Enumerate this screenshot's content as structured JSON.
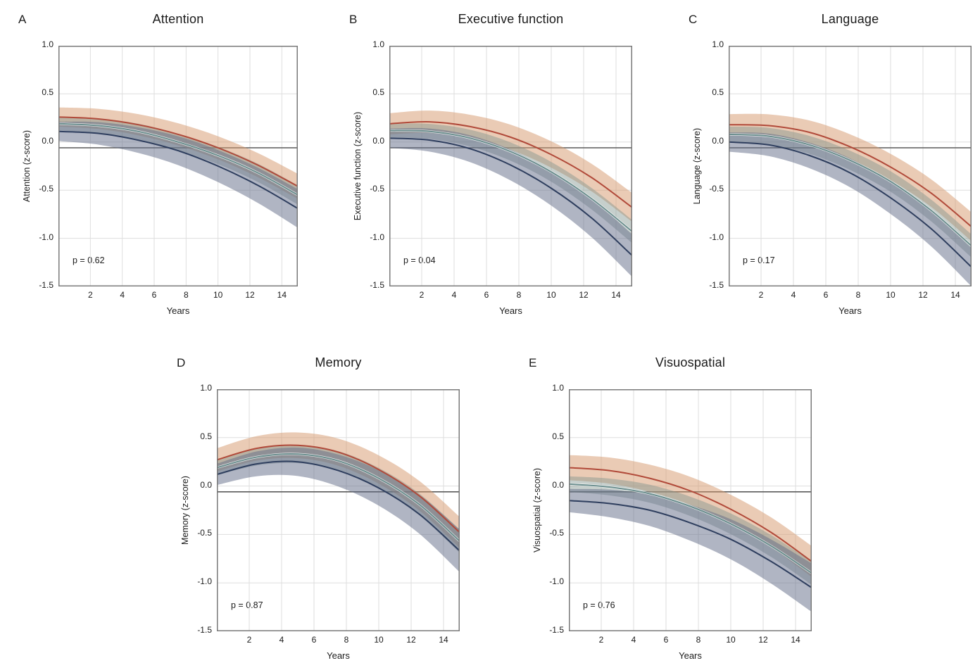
{
  "figure": {
    "background": "#ffffff",
    "colors": {
      "grid": "#dedede",
      "border": "#7a7a7a",
      "reference_line": "#5a5a5a",
      "text": "#1b1b1b",
      "red_line": "#b14a3a",
      "red_band": "rgba(213,151,107,0.5)",
      "teal_line": "#6b8e8e",
      "teal_band": "rgba(128,148,143,0.45)",
      "navy_line": "#2e3e5e",
      "navy_band": "rgba(97,107,136,0.5)"
    }
  },
  "chart_data": [
    {
      "type": "line",
      "panel": "A",
      "title": "Attention",
      "ylabel": "Attention (z-score)",
      "xlabel": "Years",
      "p_label": "p = 0.62",
      "x_ticks": [
        "2",
        "4",
        "6",
        "8",
        "10",
        "12",
        "14"
      ],
      "x_tick_values": [
        2,
        4,
        6,
        8,
        10,
        12,
        14
      ],
      "y_ticks": [
        "1.0",
        "0.5",
        "0.0",
        "-0.5",
        "-1.0",
        "-1.5"
      ],
      "y_tick_values": [
        1.0,
        0.5,
        0.0,
        -0.5,
        -1.0,
        -1.5
      ],
      "xlim": [
        0,
        15
      ],
      "ylim": [
        -1.5,
        1.0
      ],
      "grid": true,
      "legend": "none",
      "reference_line_y": -0.06,
      "x": [
        0,
        2.5,
        5,
        7.5,
        10,
        12.5,
        15
      ],
      "series": [
        {
          "name": "red",
          "line_color": "#b14a3a",
          "band_color": "rgba(213,151,107,0.5)",
          "y": [
            0.26,
            0.24,
            0.18,
            0.08,
            -0.06,
            -0.24,
            -0.46
          ],
          "ci": [
            0.1,
            0.105,
            0.11,
            0.115,
            0.12,
            0.125,
            0.13
          ]
        },
        {
          "name": "teal",
          "line_color": "#6b8e8e",
          "band_color": "rgba(128,148,143,0.45)",
          "y": [
            0.19,
            0.17,
            0.11,
            0.0,
            -0.14,
            -0.32,
            -0.55
          ],
          "ci": [
            0.07,
            0.075,
            0.08,
            0.085,
            0.09,
            0.095,
            0.1
          ]
        },
        {
          "name": "navy",
          "line_color": "#2e3e5e",
          "band_color": "rgba(97,107,136,0.5)",
          "y": [
            0.11,
            0.09,
            0.02,
            -0.09,
            -0.25,
            -0.45,
            -0.69
          ],
          "ci": [
            0.1,
            0.117,
            0.133,
            0.15,
            0.167,
            0.183,
            0.2
          ]
        }
      ]
    },
    {
      "type": "line",
      "panel": "B",
      "title": "Executive function",
      "ylabel": "Executive function (z-score)",
      "xlabel": "Years",
      "p_label": "p = 0.04",
      "x_ticks": [
        "2",
        "4",
        "6",
        "8",
        "10",
        "12",
        "14"
      ],
      "x_tick_values": [
        2,
        4,
        6,
        8,
        10,
        12,
        14
      ],
      "y_ticks": [
        "1.0",
        "0.5",
        "0.0",
        "-0.5",
        "-1.0",
        "-1.5"
      ],
      "y_tick_values": [
        1.0,
        0.5,
        0.0,
        -0.5,
        -1.0,
        -1.5
      ],
      "xlim": [
        0,
        15
      ],
      "ylim": [
        -1.5,
        1.0
      ],
      "grid": true,
      "legend": "none",
      "reference_line_y": -0.06,
      "x": [
        0,
        2.5,
        5,
        7.5,
        10,
        12.5,
        15
      ],
      "series": [
        {
          "name": "red",
          "line_color": "#b14a3a",
          "band_color": "rgba(213,151,107,0.5)",
          "y": [
            0.19,
            0.21,
            0.16,
            0.05,
            -0.13,
            -0.37,
            -0.68
          ],
          "ci": [
            0.11,
            0.117,
            0.123,
            0.13,
            0.137,
            0.143,
            0.15
          ]
        },
        {
          "name": "teal",
          "line_color": "#6b8e8e",
          "band_color": "rgba(128,148,143,0.45)",
          "y": [
            0.12,
            0.11,
            0.04,
            -0.1,
            -0.31,
            -0.59,
            -0.93
          ],
          "ci": [
            0.07,
            0.078,
            0.087,
            0.095,
            0.103,
            0.112,
            0.12
          ]
        },
        {
          "name": "navy",
          "line_color": "#2e3e5e",
          "band_color": "rgba(97,107,136,0.5)",
          "y": [
            0.04,
            0.02,
            -0.07,
            -0.24,
            -0.48,
            -0.79,
            -1.18
          ],
          "ci": [
            0.1,
            0.12,
            0.14,
            0.16,
            0.18,
            0.2,
            0.22
          ]
        }
      ]
    },
    {
      "type": "line",
      "panel": "C",
      "title": "Language",
      "ylabel": "Language (z-score)",
      "xlabel": "Years",
      "p_label": "p = 0.17",
      "x_ticks": [
        "2",
        "4",
        "6",
        "8",
        "10",
        "12",
        "14"
      ],
      "x_tick_values": [
        2,
        4,
        6,
        8,
        10,
        12,
        14
      ],
      "y_ticks": [
        "1.0",
        "0.5",
        "0.0",
        "-0.5",
        "-1.0",
        "-1.5"
      ],
      "y_tick_values": [
        1.0,
        0.5,
        0.0,
        -0.5,
        -1.0,
        -1.5
      ],
      "xlim": [
        0,
        15
      ],
      "ylim": [
        -1.5,
        1.0
      ],
      "grid": true,
      "legend": "none",
      "reference_line_y": -0.06,
      "x": [
        0,
        2.5,
        5,
        7.5,
        10,
        12.5,
        15
      ],
      "series": [
        {
          "name": "red",
          "line_color": "#b14a3a",
          "band_color": "rgba(213,151,107,0.5)",
          "y": [
            0.18,
            0.17,
            0.1,
            -0.05,
            -0.26,
            -0.53,
            -0.88
          ],
          "ci": [
            0.11,
            0.117,
            0.123,
            0.13,
            0.137,
            0.143,
            0.15
          ]
        },
        {
          "name": "teal",
          "line_color": "#6b8e8e",
          "band_color": "rgba(128,148,143,0.45)",
          "y": [
            0.08,
            0.06,
            -0.03,
            -0.19,
            -0.41,
            -0.71,
            -1.08
          ],
          "ci": [
            0.08,
            0.087,
            0.093,
            0.1,
            0.107,
            0.113,
            0.12
          ]
        },
        {
          "name": "navy",
          "line_color": "#2e3e5e",
          "band_color": "rgba(97,107,136,0.5)",
          "y": [
            0.0,
            -0.03,
            -0.14,
            -0.32,
            -0.58,
            -0.9,
            -1.3
          ],
          "ci": [
            0.1,
            0.117,
            0.133,
            0.15,
            0.167,
            0.183,
            0.2
          ]
        }
      ]
    },
    {
      "type": "line",
      "panel": "D",
      "title": "Memory",
      "ylabel": "Memory (z-score)",
      "xlabel": "Years",
      "p_label": "p = 0.87",
      "x_ticks": [
        "2",
        "4",
        "6",
        "8",
        "10",
        "12",
        "14"
      ],
      "x_tick_values": [
        2,
        4,
        6,
        8,
        10,
        12,
        14
      ],
      "y_ticks": [
        "1.0",
        "0.5",
        "0.0",
        "-0.5",
        "-1.0",
        "-1.5"
      ],
      "y_tick_values": [
        1.0,
        0.5,
        0.0,
        -0.5,
        -1.0,
        -1.5
      ],
      "xlim": [
        0,
        15
      ],
      "ylim": [
        -1.5,
        1.0
      ],
      "grid": true,
      "legend": "none",
      "reference_line_y": -0.06,
      "x": [
        0,
        2.5,
        5,
        7.5,
        10,
        12.5,
        15
      ],
      "series": [
        {
          "name": "red",
          "line_color": "#b14a3a",
          "band_color": "rgba(213,151,107,0.5)",
          "y": [
            0.27,
            0.39,
            0.42,
            0.35,
            0.17,
            -0.1,
            -0.48
          ],
          "ci": [
            0.12,
            0.127,
            0.133,
            0.14,
            0.147,
            0.153,
            0.16
          ]
        },
        {
          "name": "teal",
          "line_color": "#6b8e8e",
          "band_color": "rgba(128,148,143,0.45)",
          "y": [
            0.19,
            0.3,
            0.33,
            0.26,
            0.08,
            -0.19,
            -0.57
          ],
          "ci": [
            0.08,
            0.087,
            0.093,
            0.1,
            0.107,
            0.113,
            0.12
          ]
        },
        {
          "name": "navy",
          "line_color": "#2e3e5e",
          "band_color": "rgba(97,107,136,0.5)",
          "y": [
            0.12,
            0.23,
            0.25,
            0.16,
            -0.02,
            -0.29,
            -0.67
          ],
          "ci": [
            0.11,
            0.128,
            0.147,
            0.165,
            0.183,
            0.202,
            0.22
          ]
        }
      ]
    },
    {
      "type": "line",
      "panel": "E",
      "title": "Visuospatial",
      "ylabel": "Visuospatial (z-score)",
      "xlabel": "Years",
      "p_label": "p = 0.76",
      "x_ticks": [
        "2",
        "4",
        "6",
        "8",
        "10",
        "12",
        "14"
      ],
      "x_tick_values": [
        2,
        4,
        6,
        8,
        10,
        12,
        14
      ],
      "y_ticks": [
        "1.0",
        "0.5",
        "0.0",
        "-0.5",
        "-1.0",
        "-1.5"
      ],
      "y_tick_values": [
        1.0,
        0.5,
        0.0,
        -0.5,
        -1.0,
        -1.5
      ],
      "xlim": [
        0,
        15
      ],
      "ylim": [
        -1.5,
        1.0
      ],
      "grid": true,
      "legend": "none",
      "reference_line_y": -0.06,
      "x": [
        0,
        2.5,
        5,
        7.5,
        10,
        12.5,
        15
      ],
      "series": [
        {
          "name": "red",
          "line_color": "#b14a3a",
          "band_color": "rgba(213,151,107,0.5)",
          "y": [
            0.19,
            0.16,
            0.08,
            -0.05,
            -0.24,
            -0.48,
            -0.78
          ],
          "ci": [
            0.13,
            0.135,
            0.14,
            0.145,
            0.15,
            0.155,
            0.16
          ]
        },
        {
          "name": "teal",
          "line_color": "#6b8e8e",
          "band_color": "rgba(128,148,143,0.45)",
          "y": [
            0.02,
            -0.01,
            -0.08,
            -0.21,
            -0.39,
            -0.62,
            -0.9
          ],
          "ci": [
            0.08,
            0.087,
            0.093,
            0.1,
            0.107,
            0.113,
            0.12
          ]
        },
        {
          "name": "navy",
          "line_color": "#2e3e5e",
          "band_color": "rgba(97,107,136,0.5)",
          "y": [
            -0.15,
            -0.18,
            -0.25,
            -0.38,
            -0.55,
            -0.78,
            -1.05
          ],
          "ci": [
            0.12,
            0.142,
            0.163,
            0.185,
            0.207,
            0.228,
            0.25
          ]
        }
      ]
    }
  ]
}
